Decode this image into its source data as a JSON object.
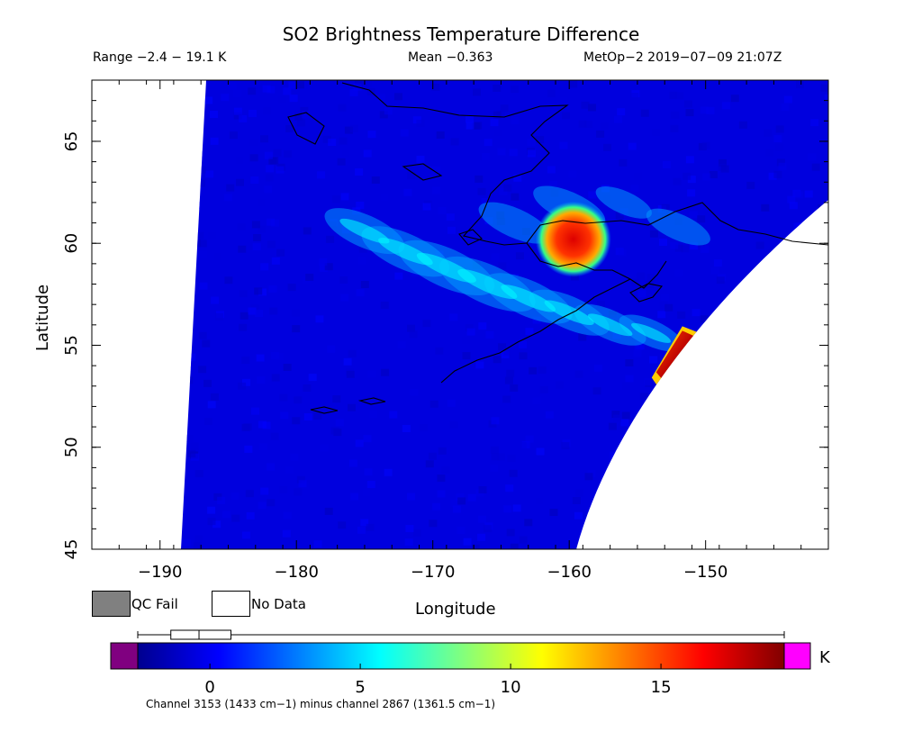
{
  "header": {
    "title": "SO2 Brightness Temperature Difference",
    "range_text": "Range −2.4 − 19.1 K",
    "mean_text": "Mean −0.363",
    "satellite_text": "MetOp−2 2019−07−09 21:07Z"
  },
  "legend": {
    "qc_fail_label": "QC Fail",
    "qc_fail_color": "#808080",
    "no_data_label": "No Data",
    "no_data_color": "#ffffff"
  },
  "colorbar": {
    "unit": "K",
    "ticks": [
      "0",
      "5",
      "10",
      "15"
    ],
    "under_color": "#800080",
    "over_color": "#ff00ff",
    "colormap": "jet",
    "min": -2.4,
    "max": 19.1
  },
  "footnote": "Channel 3153 (1433 cm−1) minus channel 2867 (1361.5 cm−1)",
  "chart_data": {
    "type": "heatmap",
    "title": "SO2 Brightness Temperature Difference",
    "xlabel": "Longitude",
    "ylabel": "Latitude",
    "xlim": [
      -195,
      -141
    ],
    "ylim": [
      45,
      68
    ],
    "x_ticks": [
      -190,
      -180,
      -170,
      -160,
      -150
    ],
    "x_tick_labels": [
      "−190",
      "−180",
      "−170",
      "−160",
      "−150"
    ],
    "y_ticks": [
      45,
      50,
      55,
      60,
      65
    ],
    "y_tick_labels": [
      "45",
      "50",
      "55",
      "60",
      "65"
    ],
    "value_range": [
      -2.4,
      19.1
    ],
    "mean": -0.363,
    "background_value": -0.4,
    "so2_plumes": [
      {
        "lon": -159.7,
        "lat": 60.2,
        "peak": 17.5
      },
      {
        "lon": -152.5,
        "lat": 54.3,
        "peak": 19.0
      }
    ],
    "enhanced_band_value": 5
  }
}
